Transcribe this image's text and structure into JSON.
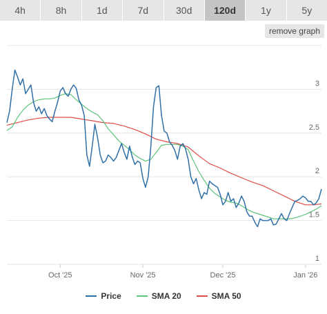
{
  "tabs": [
    {
      "label": "4h",
      "active": false
    },
    {
      "label": "8h",
      "active": false
    },
    {
      "label": "1d",
      "active": false
    },
    {
      "label": "7d",
      "active": false
    },
    {
      "label": "30d",
      "active": false
    },
    {
      "label": "120d",
      "active": true
    },
    {
      "label": "1y",
      "active": false
    },
    {
      "label": "5y",
      "active": false
    }
  ],
  "remove_graph_label": "remove graph",
  "colors": {
    "price": "#2f6fa7",
    "sma20": "#5cc47a",
    "sma50": "#e04b45",
    "grid": "#e6e6e6"
  },
  "chart_data": {
    "type": "line",
    "y_ticks": [
      1,
      1.5,
      2,
      2.5,
      3
    ],
    "y_tick_labels": [
      "1",
      "1.5",
      "2",
      "2.5",
      "3"
    ],
    "ylim": [
      1,
      3.5
    ],
    "x_ticks": [
      {
        "label": "Oct '25",
        "day": 20
      },
      {
        "label": "Nov '25",
        "day": 51
      },
      {
        "label": "Dec '25",
        "day": 81
      },
      {
        "label": "Jan '26",
        "day": 112
      }
    ],
    "xlim": [
      0,
      118
    ],
    "grid": true,
    "legend_position": "bottom",
    "series": [
      {
        "name": "Price",
        "color": "#2f6fa7",
        "points": [
          [
            0,
            2.62
          ],
          [
            1,
            2.75
          ],
          [
            2,
            3.0
          ],
          [
            3,
            3.22
          ],
          [
            4,
            3.14
          ],
          [
            5,
            3.05
          ],
          [
            6,
            3.12
          ],
          [
            7,
            2.95
          ],
          [
            8,
            3.0
          ],
          [
            9,
            3.05
          ],
          [
            10,
            2.85
          ],
          [
            11,
            2.75
          ],
          [
            12,
            2.8
          ],
          [
            13,
            2.72
          ],
          [
            14,
            2.78
          ],
          [
            15,
            2.7
          ],
          [
            16,
            2.66
          ],
          [
            17,
            2.63
          ],
          [
            18,
            2.75
          ],
          [
            19,
            2.85
          ],
          [
            20,
            2.98
          ],
          [
            21,
            3.02
          ],
          [
            22,
            2.95
          ],
          [
            23,
            2.92
          ],
          [
            24,
            3.0
          ],
          [
            25,
            3.05
          ],
          [
            26,
            3.01
          ],
          [
            27,
            2.88
          ],
          [
            28,
            2.82
          ],
          [
            29,
            2.7
          ],
          [
            30,
            2.25
          ],
          [
            31,
            2.12
          ],
          [
            32,
            2.35
          ],
          [
            33,
            2.6
          ],
          [
            34,
            2.45
          ],
          [
            35,
            2.25
          ],
          [
            36,
            2.16
          ],
          [
            37,
            2.18
          ],
          [
            38,
            2.25
          ],
          [
            39,
            2.22
          ],
          [
            40,
            2.18
          ],
          [
            41,
            2.22
          ],
          [
            42,
            2.3
          ],
          [
            43,
            2.38
          ],
          [
            44,
            2.28
          ],
          [
            45,
            2.2
          ],
          [
            46,
            2.35
          ],
          [
            47,
            2.23
          ],
          [
            48,
            2.14
          ],
          [
            49,
            2.18
          ],
          [
            50,
            2.16
          ],
          [
            51,
            1.98
          ],
          [
            52,
            1.88
          ],
          [
            53,
            2.0
          ],
          [
            54,
            2.35
          ],
          [
            55,
            2.8
          ],
          [
            56,
            3.02
          ],
          [
            57,
            3.04
          ],
          [
            58,
            2.7
          ],
          [
            59,
            2.52
          ],
          [
            60,
            2.5
          ],
          [
            61,
            2.4
          ],
          [
            62,
            2.36
          ],
          [
            63,
            2.3
          ],
          [
            64,
            2.2
          ],
          [
            65,
            2.35
          ],
          [
            66,
            2.38
          ],
          [
            67,
            2.32
          ],
          [
            68,
            2.2
          ],
          [
            69,
            2.0
          ],
          [
            70,
            1.92
          ],
          [
            71,
            1.98
          ],
          [
            72,
            1.85
          ],
          [
            73,
            1.75
          ],
          [
            74,
            1.82
          ],
          [
            75,
            1.8
          ],
          [
            76,
            1.95
          ],
          [
            77,
            1.92
          ],
          [
            78,
            1.9
          ],
          [
            79,
            1.88
          ],
          [
            80,
            1.8
          ],
          [
            81,
            1.68
          ],
          [
            82,
            1.72
          ],
          [
            83,
            1.82
          ],
          [
            84,
            1.72
          ],
          [
            85,
            1.75
          ],
          [
            86,
            1.65
          ],
          [
            87,
            1.7
          ],
          [
            88,
            1.78
          ],
          [
            89,
            1.72
          ],
          [
            90,
            1.6
          ],
          [
            91,
            1.55
          ],
          [
            92,
            1.55
          ],
          [
            93,
            1.48
          ],
          [
            94,
            1.43
          ],
          [
            95,
            1.52
          ],
          [
            96,
            1.5
          ],
          [
            97,
            1.5
          ],
          [
            98,
            1.5
          ],
          [
            99,
            1.52
          ],
          [
            100,
            1.45
          ],
          [
            101,
            1.46
          ],
          [
            102,
            1.52
          ],
          [
            103,
            1.58
          ],
          [
            104,
            1.52
          ],
          [
            105,
            1.5
          ],
          [
            106,
            1.58
          ],
          [
            107,
            1.65
          ],
          [
            108,
            1.72
          ],
          [
            109,
            1.73
          ],
          [
            110,
            1.75
          ],
          [
            111,
            1.78
          ],
          [
            112,
            1.76
          ],
          [
            113,
            1.72
          ],
          [
            114,
            1.72
          ],
          [
            115,
            1.68
          ],
          [
            116,
            1.7
          ],
          [
            117,
            1.75
          ],
          [
            118,
            1.86
          ]
        ]
      },
      {
        "name": "SMA 20",
        "color": "#5cc47a",
        "points": [
          [
            0,
            2.53
          ],
          [
            2,
            2.57
          ],
          [
            4,
            2.68
          ],
          [
            6,
            2.76
          ],
          [
            8,
            2.82
          ],
          [
            10,
            2.86
          ],
          [
            12,
            2.88
          ],
          [
            14,
            2.89
          ],
          [
            16,
            2.89
          ],
          [
            18,
            2.9
          ],
          [
            20,
            2.93
          ],
          [
            22,
            2.95
          ],
          [
            24,
            2.94
          ],
          [
            26,
            2.88
          ],
          [
            28,
            2.83
          ],
          [
            30,
            2.78
          ],
          [
            32,
            2.74
          ],
          [
            34,
            2.71
          ],
          [
            36,
            2.64
          ],
          [
            38,
            2.55
          ],
          [
            40,
            2.48
          ],
          [
            42,
            2.41
          ],
          [
            44,
            2.36
          ],
          [
            46,
            2.31
          ],
          [
            48,
            2.25
          ],
          [
            50,
            2.21
          ],
          [
            52,
            2.18
          ],
          [
            54,
            2.2
          ],
          [
            56,
            2.28
          ],
          [
            58,
            2.36
          ],
          [
            60,
            2.37
          ],
          [
            62,
            2.37
          ],
          [
            64,
            2.37
          ],
          [
            66,
            2.35
          ],
          [
            68,
            2.31
          ],
          [
            70,
            2.18
          ],
          [
            72,
            2.06
          ],
          [
            74,
            1.96
          ],
          [
            76,
            1.87
          ],
          [
            78,
            1.81
          ],
          [
            80,
            1.77
          ],
          [
            82,
            1.73
          ],
          [
            84,
            1.71
          ],
          [
            86,
            1.7
          ],
          [
            88,
            1.67
          ],
          [
            90,
            1.63
          ],
          [
            92,
            1.6
          ],
          [
            94,
            1.58
          ],
          [
            96,
            1.56
          ],
          [
            98,
            1.54
          ],
          [
            100,
            1.52
          ],
          [
            102,
            1.52
          ],
          [
            104,
            1.52
          ],
          [
            106,
            1.52
          ],
          [
            108,
            1.53
          ],
          [
            110,
            1.55
          ],
          [
            112,
            1.57
          ],
          [
            114,
            1.6
          ],
          [
            116,
            1.63
          ],
          [
            118,
            1.67
          ]
        ]
      },
      {
        "name": "SMA 50",
        "color": "#e04b45",
        "points": [
          [
            0,
            2.59
          ],
          [
            4,
            2.62
          ],
          [
            8,
            2.65
          ],
          [
            12,
            2.67
          ],
          [
            16,
            2.68
          ],
          [
            20,
            2.68
          ],
          [
            24,
            2.68
          ],
          [
            28,
            2.66
          ],
          [
            32,
            2.64
          ],
          [
            36,
            2.62
          ],
          [
            40,
            2.61
          ],
          [
            44,
            2.58
          ],
          [
            48,
            2.54
          ],
          [
            52,
            2.49
          ],
          [
            56,
            2.43
          ],
          [
            60,
            2.4
          ],
          [
            64,
            2.38
          ],
          [
            68,
            2.34
          ],
          [
            72,
            2.24
          ],
          [
            76,
            2.15
          ],
          [
            80,
            2.1
          ],
          [
            84,
            2.04
          ],
          [
            88,
            1.99
          ],
          [
            92,
            1.94
          ],
          [
            96,
            1.9
          ],
          [
            100,
            1.84
          ],
          [
            104,
            1.78
          ],
          [
            108,
            1.72
          ],
          [
            112,
            1.68
          ],
          [
            115,
            1.68
          ],
          [
            118,
            1.69
          ]
        ]
      }
    ]
  }
}
